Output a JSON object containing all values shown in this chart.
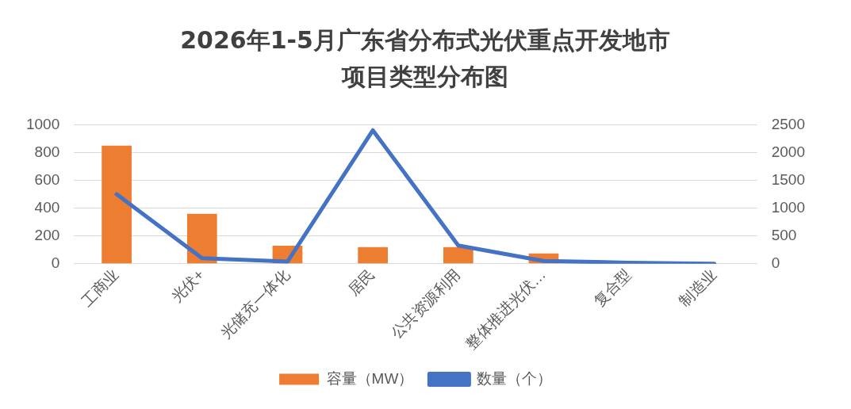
{
  "chart_data": {
    "type": "bar",
    "title": "2026年1-5月广东省分布式光伏重点开发地市项目类型分布图",
    "categories": [
      "工商业",
      "光伏+",
      "光储充一体化",
      "居民",
      "公共资源利用",
      "整体推进光伏…",
      "复合型",
      "制造业"
    ],
    "series": [
      {
        "name": "容量（MW）",
        "color": "#ed7d31",
        "values": [
          850,
          360,
          130,
          120,
          120,
          75,
          null,
          null
        ]
      },
      {
        "name": "数量（个）",
        "type": "line",
        "axis": "y2",
        "color": "#4472c4",
        "values": [
          1250,
          100,
          40,
          2400,
          330,
          50,
          20,
          0
        ]
      }
    ],
    "ylim": [
      0,
      1000
    ],
    "yticks": [
      0,
      200,
      400,
      600,
      800,
      1000
    ],
    "y2lim": [
      0,
      2500
    ],
    "y2ticks": [
      0,
      500,
      1000,
      1500,
      2000,
      2500
    ],
    "grid": "y",
    "legend": "bottom",
    "marker": "none"
  }
}
